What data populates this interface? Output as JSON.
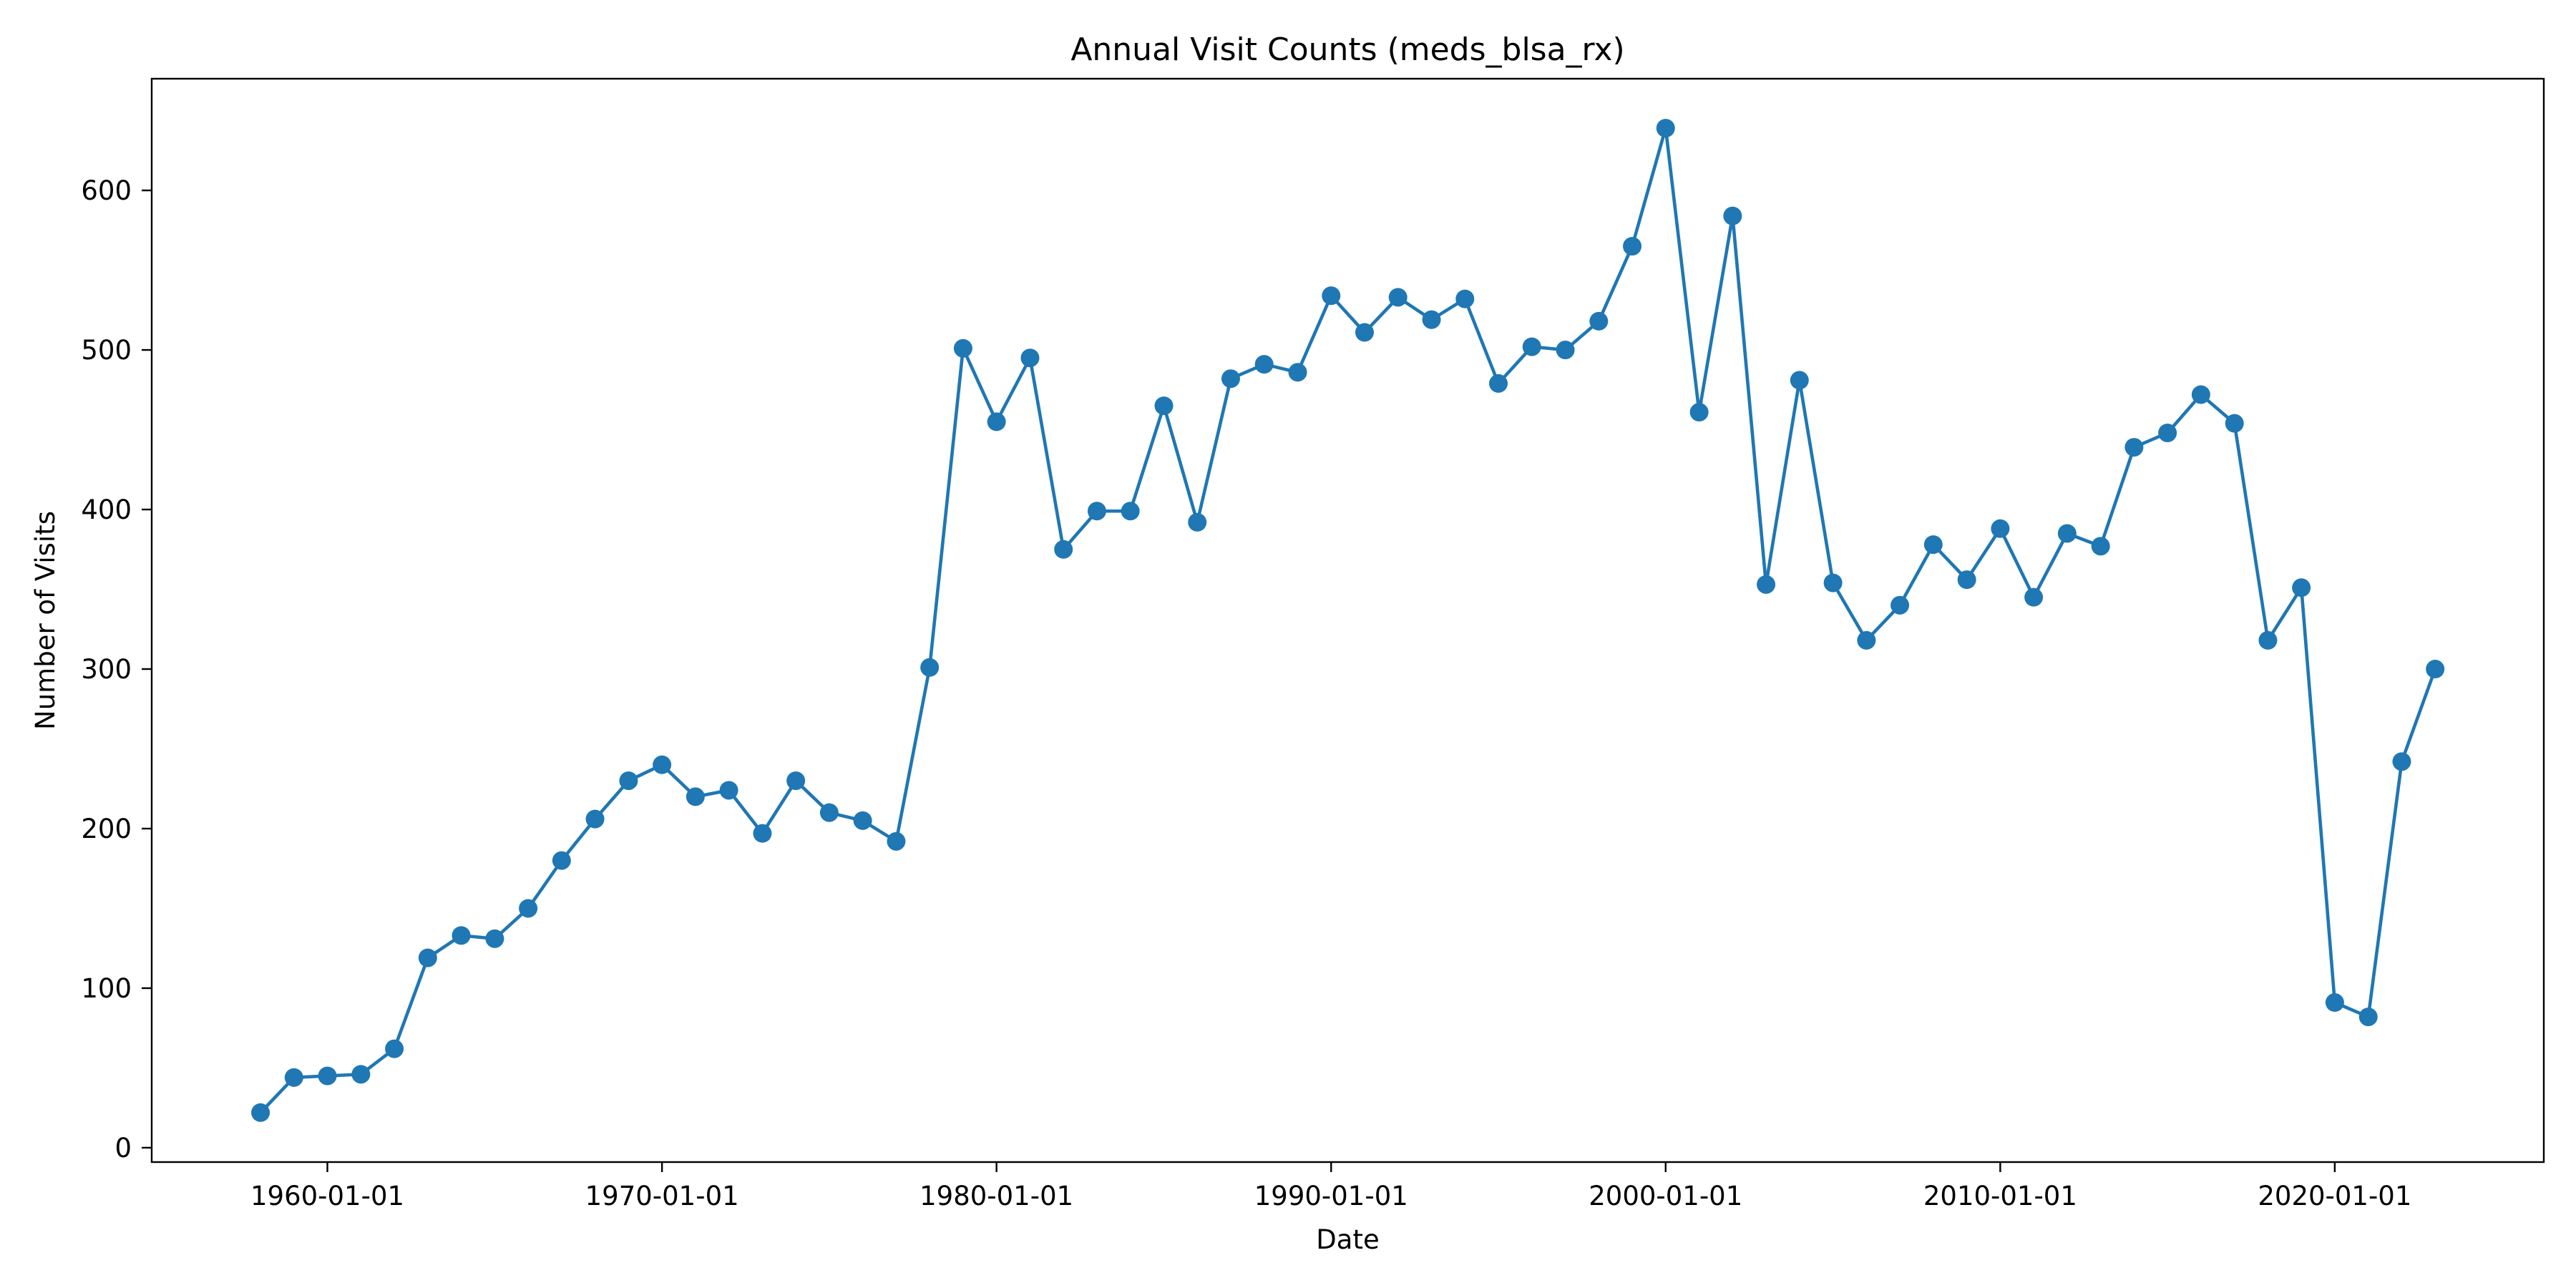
{
  "chart_data": {
    "type": "line",
    "title": "Annual Visit Counts (meds_blsa_rx)",
    "xlabel": "Date",
    "ylabel": "Number of Visits",
    "x_axis_type": "date",
    "xlim": [
      "1954-10-01",
      "2026-04-01"
    ],
    "ylim": [
      -9,
      670
    ],
    "x_ticks": [
      "1960-01-01",
      "1970-01-01",
      "1980-01-01",
      "1990-01-01",
      "2000-01-01",
      "2010-01-01",
      "2020-01-01"
    ],
    "y_ticks": [
      0,
      100,
      200,
      300,
      400,
      500,
      600
    ],
    "y_tick_labels": [
      "0",
      "100",
      "200",
      "300",
      "400",
      "500",
      "600"
    ],
    "grid": false,
    "legend": "none",
    "marker": "circle",
    "series_color": "#1f77b4",
    "x": [
      "1958-01-01",
      "1959-01-01",
      "1960-01-01",
      "1961-01-01",
      "1962-01-01",
      "1963-01-01",
      "1964-01-01",
      "1965-01-01",
      "1966-01-01",
      "1967-01-01",
      "1968-01-01",
      "1969-01-01",
      "1970-01-01",
      "1971-01-01",
      "1972-01-01",
      "1973-01-01",
      "1974-01-01",
      "1975-01-01",
      "1976-01-01",
      "1977-01-01",
      "1978-01-01",
      "1979-01-01",
      "1980-01-01",
      "1981-01-01",
      "1982-01-01",
      "1983-01-01",
      "1984-01-01",
      "1985-01-01",
      "1986-01-01",
      "1987-01-01",
      "1988-01-01",
      "1989-01-01",
      "1990-01-01",
      "1991-01-01",
      "1992-01-01",
      "1993-01-01",
      "1994-01-01",
      "1995-01-01",
      "1996-01-01",
      "1997-01-01",
      "1998-01-01",
      "1999-01-01",
      "2000-01-01",
      "2001-01-01",
      "2002-01-01",
      "2003-01-01",
      "2004-01-01",
      "2005-01-01",
      "2006-01-01",
      "2007-01-01",
      "2008-01-01",
      "2009-01-01",
      "2010-01-01",
      "2011-01-01",
      "2012-01-01",
      "2013-01-01",
      "2014-01-01",
      "2015-01-01",
      "2016-01-01",
      "2017-01-01",
      "2018-01-01",
      "2019-01-01",
      "2020-01-01",
      "2021-01-01",
      "2022-01-01",
      "2023-01-01"
    ],
    "series": [
      {
        "values": [
          22,
          44,
          45,
          46,
          62,
          119,
          133,
          131,
          150,
          180,
          206,
          230,
          240,
          220,
          224,
          197,
          230,
          210,
          205,
          192,
          301,
          501,
          455,
          495,
          375,
          399,
          399,
          465,
          392,
          482,
          491,
          486,
          534,
          511,
          533,
          519,
          532,
          479,
          502,
          500,
          518,
          565,
          639,
          461,
          584,
          353,
          481,
          354,
          318,
          340,
          378,
          356,
          388,
          345,
          385,
          377,
          439,
          448,
          472,
          454,
          318,
          351,
          91,
          82,
          242,
          300
        ]
      }
    ]
  }
}
